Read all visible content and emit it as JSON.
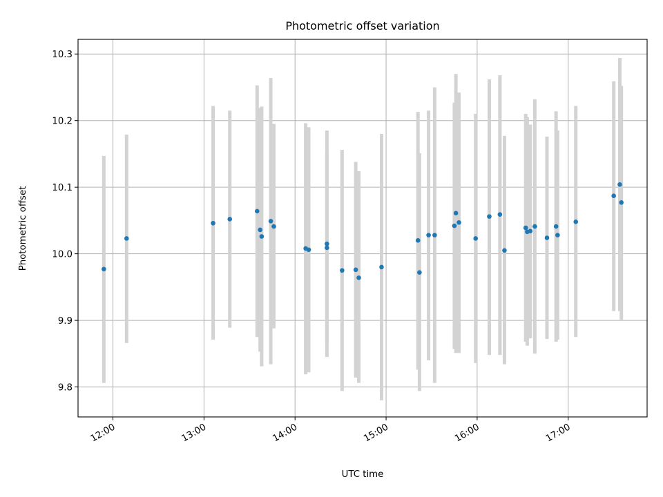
{
  "chart_data": {
    "type": "scatter",
    "title": "Photometric offset variation",
    "xlabel": "UTC time",
    "ylabel": "Photometric offset",
    "x_axis_type": "time",
    "xlim": [
      "11:37",
      "17:52"
    ],
    "ylim": [
      9.755,
      10.322
    ],
    "grid": true,
    "error_bar_color": "#d3d3d3",
    "point_color": "#1f77b4",
    "x_ticks": [
      "12:00",
      "13:00",
      "14:00",
      "15:00",
      "16:00",
      "17:00"
    ],
    "y_ticks": [
      "9.8",
      "9.9",
      "10.0",
      "10.1",
      "10.2",
      "10.3"
    ],
    "points": [
      {
        "x": "11:54",
        "y": 9.977,
        "y_low": 9.806,
        "y_high": 10.147
      },
      {
        "x": "12:09",
        "y": 10.023,
        "y_low": 9.866,
        "y_high": 10.179
      },
      {
        "x": "13:06",
        "y": 10.046,
        "y_low": 9.871,
        "y_high": 10.222
      },
      {
        "x": "13:17",
        "y": 10.052,
        "y_low": 9.889,
        "y_high": 10.215
      },
      {
        "x": "13:35",
        "y": 10.064,
        "y_low": 9.875,
        "y_high": 10.253
      },
      {
        "x": "13:37",
        "y": 10.036,
        "y_low": 9.853,
        "y_high": 10.219
      },
      {
        "x": "13:38",
        "y": 10.026,
        "y_low": 9.831,
        "y_high": 10.221
      },
      {
        "x": "13:44",
        "y": 10.049,
        "y_low": 9.834,
        "y_high": 10.264
      },
      {
        "x": "13:46",
        "y": 10.041,
        "y_low": 9.888,
        "y_high": 10.195
      },
      {
        "x": "14:07",
        "y": 10.008,
        "y_low": 9.819,
        "y_high": 10.196
      },
      {
        "x": "14:09",
        "y": 10.006,
        "y_low": 9.822,
        "y_high": 10.19
      },
      {
        "x": "14:21",
        "y": 10.015,
        "y_low": 9.845,
        "y_high": 10.185
      },
      {
        "x": "14:21",
        "y": 10.009,
        "y_low": 9.866,
        "y_high": 10.152
      },
      {
        "x": "14:31",
        "y": 9.975,
        "y_low": 9.794,
        "y_high": 10.156
      },
      {
        "x": "14:40",
        "y": 9.976,
        "y_low": 9.814,
        "y_high": 10.138
      },
      {
        "x": "14:42",
        "y": 9.964,
        "y_low": 9.806,
        "y_high": 10.124
      },
      {
        "x": "14:57",
        "y": 9.98,
        "y_low": 9.78,
        "y_high": 10.18
      },
      {
        "x": "15:21",
        "y": 10.02,
        "y_low": 9.826,
        "y_high": 10.213
      },
      {
        "x": "15:22",
        "y": 9.972,
        "y_low": 9.794,
        "y_high": 10.151
      },
      {
        "x": "15:28",
        "y": 10.028,
        "y_low": 9.84,
        "y_high": 10.215
      },
      {
        "x": "15:32",
        "y": 10.028,
        "y_low": 9.806,
        "y_high": 10.25
      },
      {
        "x": "15:45",
        "y": 10.042,
        "y_low": 9.857,
        "y_high": 10.227
      },
      {
        "x": "15:46",
        "y": 10.061,
        "y_low": 9.851,
        "y_high": 10.27
      },
      {
        "x": "15:48",
        "y": 10.047,
        "y_low": 9.851,
        "y_high": 10.242
      },
      {
        "x": "15:59",
        "y": 10.023,
        "y_low": 9.836,
        "y_high": 10.21
      },
      {
        "x": "16:08",
        "y": 10.056,
        "y_low": 9.848,
        "y_high": 10.262
      },
      {
        "x": "16:15",
        "y": 10.059,
        "y_low": 9.848,
        "y_high": 10.268
      },
      {
        "x": "16:18",
        "y": 10.005,
        "y_low": 9.834,
        "y_high": 10.177
      },
      {
        "x": "16:32",
        "y": 10.039,
        "y_low": 9.868,
        "y_high": 10.21
      },
      {
        "x": "16:33",
        "y": 10.033,
        "y_low": 9.862,
        "y_high": 10.205
      },
      {
        "x": "16:35",
        "y": 10.034,
        "y_low": 9.873,
        "y_high": 10.194
      },
      {
        "x": "16:38",
        "y": 10.041,
        "y_low": 9.85,
        "y_high": 10.232
      },
      {
        "x": "16:46",
        "y": 10.024,
        "y_low": 9.872,
        "y_high": 10.176
      },
      {
        "x": "16:52",
        "y": 10.041,
        "y_low": 9.868,
        "y_high": 10.214
      },
      {
        "x": "16:53",
        "y": 10.028,
        "y_low": 9.871,
        "y_high": 10.185
      },
      {
        "x": "17:05",
        "y": 10.048,
        "y_low": 9.875,
        "y_high": 10.222
      },
      {
        "x": "17:30",
        "y": 10.087,
        "y_low": 9.914,
        "y_high": 10.259
      },
      {
        "x": "17:34",
        "y": 10.104,
        "y_low": 9.914,
        "y_high": 10.294
      },
      {
        "x": "17:35",
        "y": 10.077,
        "y_low": 9.901,
        "y_high": 10.252
      }
    ]
  }
}
